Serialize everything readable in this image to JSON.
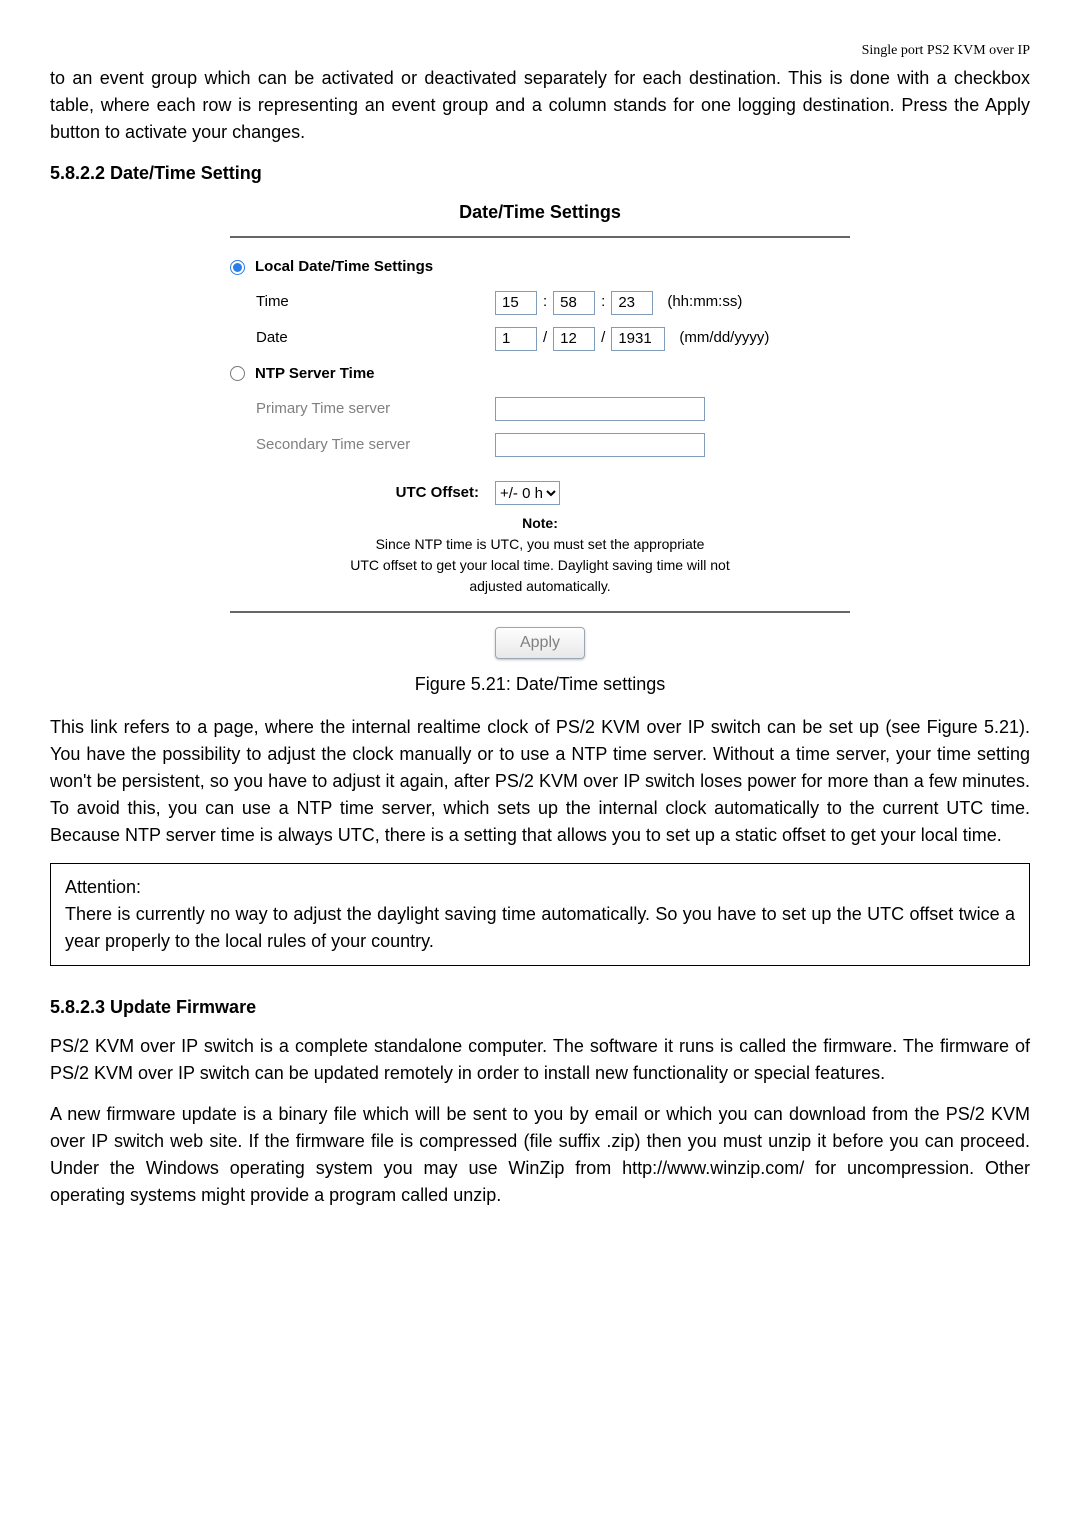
{
  "product_header": "Single  port  PS2  KVM  over  IP",
  "intro_para": "to an event group which can be activated or deactivated separately for each destination. This is done with a checkbox table, where each row is representing an event group and a column stands for one logging destination. Press the Apply button to activate your changes.",
  "section_5822": "5.8.2.2 Date/Time Setting",
  "form": {
    "title": "Date/Time Settings",
    "group_local": "Local Date/Time Settings",
    "rows": {
      "time_label": "Time",
      "time_hh": "15",
      "time_mm": "58",
      "time_ss": "23",
      "time_unit": "(hh:mm:ss)",
      "date_label": "Date",
      "date_mm": "1",
      "date_dd": "12",
      "date_yyyy": "1931",
      "date_unit": "(mm/dd/yyyy)"
    },
    "group_ntp": "NTP Server Time",
    "ntp_primary_label": "Primary Time server",
    "ntp_secondary_label": "Secondary Time server",
    "utc_offset_label": "UTC Offset:",
    "utc_offset_value": "+/- 0 h",
    "note_title": "Note:",
    "note_body1": "Since NTP time is UTC, you must set the appropriate",
    "note_body2": "UTC offset to get your local time. Daylight saving time will not",
    "note_body3": "adjusted automatically.",
    "apply_label": "Apply"
  },
  "figure_caption": "Figure 5.21: Date/Time settings",
  "body_para_1": "This link refers to a page, where the internal realtime clock of PS/2 KVM over IP switch can be set up (see Figure 5.21). You have the possibility to adjust the clock manually or to use a NTP time server. Without a time server, your time setting won't be persistent, so you have to adjust it again, after PS/2 KVM over IP switch loses power for more than a few minutes. To avoid this, you can use a NTP time server, which sets up the internal clock automatically to the current UTC time. Because NTP server time is always UTC, there is a setting that allows you to set up a static offset to get your local time.",
  "attention_title": "Attention:",
  "attention_body": "There is currently no way to adjust the daylight saving time automatically. So you have to set up the UTC offset twice a year properly to the local rules of your country.",
  "section_5823": "5.8.2.3 Update Firmware",
  "body_para_2": "PS/2 KVM over IP switch is a complete standalone computer. The software it runs is called the firmware. The firmware of PS/2 KVM over IP switch can be updated remotely in order to install new functionality or special features.",
  "body_para_3": "A new firmware update is a binary file which will be sent to you by email or which you can download from the PS/2 KVM over IP switch web site. If the firmware file is compressed (file suffix .zip) then you must unzip it before you can proceed. Under the Windows operating system you may use WinZip from http://www.winzip.com/ for uncompression. Other operating systems might provide a program called unzip."
}
